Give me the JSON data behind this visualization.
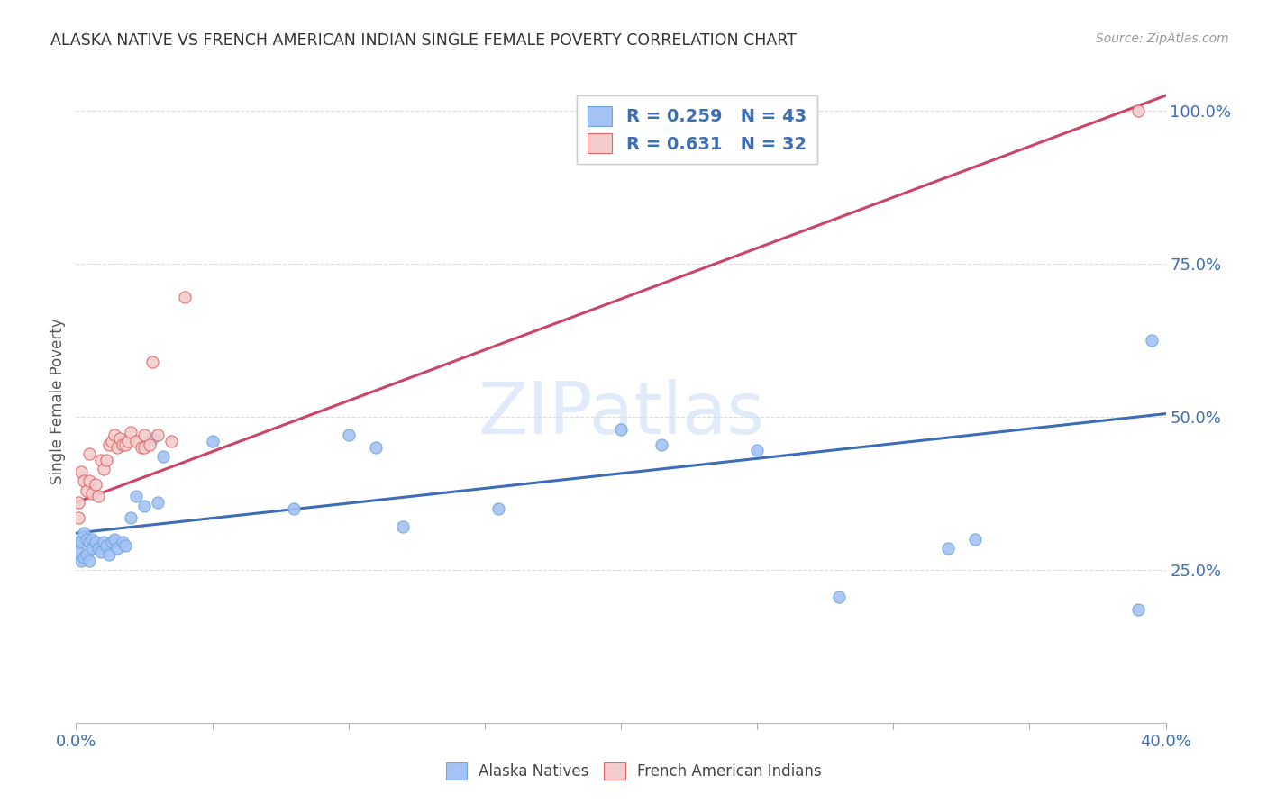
{
  "title": "ALASKA NATIVE VS FRENCH AMERICAN INDIAN SINGLE FEMALE POVERTY CORRELATION CHART",
  "source": "Source: ZipAtlas.com",
  "ylabel": "Single Female Poverty",
  "xlim": [
    0.0,
    0.4
  ],
  "ylim": [
    0.0,
    1.05
  ],
  "xticks": [
    0.0,
    0.05,
    0.1,
    0.15,
    0.2,
    0.25,
    0.3,
    0.35,
    0.4
  ],
  "yticks": [
    0.25,
    0.5,
    0.75,
    1.0
  ],
  "watermark_text": "ZIPatlas",
  "blue_color": "#a4c2f4",
  "blue_edge": "#6fa8dc",
  "pink_color": "#f4cccc",
  "pink_edge": "#e06666",
  "blue_line_color": "#3d6eb5",
  "pink_line_color": "#cc4466",
  "text_blue": "#3d6eb5",
  "background": "#ffffff",
  "alaska_x": [
    0.001,
    0.001,
    0.002,
    0.002,
    0.003,
    0.003,
    0.004,
    0.004,
    0.005,
    0.005,
    0.006,
    0.006,
    0.007,
    0.008,
    0.009,
    0.01,
    0.011,
    0.012,
    0.013,
    0.014,
    0.015,
    0.017,
    0.018,
    0.02,
    0.022,
    0.025,
    0.028,
    0.03,
    0.032,
    0.05,
    0.08,
    0.1,
    0.11,
    0.12,
    0.155,
    0.2,
    0.215,
    0.25,
    0.28,
    0.32,
    0.33,
    0.39,
    0.395
  ],
  "alaska_y": [
    0.295,
    0.28,
    0.295,
    0.265,
    0.31,
    0.27,
    0.3,
    0.275,
    0.295,
    0.265,
    0.3,
    0.285,
    0.295,
    0.285,
    0.28,
    0.295,
    0.29,
    0.275,
    0.295,
    0.3,
    0.285,
    0.295,
    0.29,
    0.335,
    0.37,
    0.355,
    0.465,
    0.36,
    0.435,
    0.46,
    0.35,
    0.47,
    0.45,
    0.32,
    0.35,
    0.48,
    0.455,
    0.445,
    0.205,
    0.285,
    0.3,
    0.185,
    0.625
  ],
  "french_x": [
    0.001,
    0.001,
    0.002,
    0.003,
    0.004,
    0.005,
    0.005,
    0.006,
    0.007,
    0.008,
    0.009,
    0.01,
    0.011,
    0.012,
    0.013,
    0.014,
    0.015,
    0.016,
    0.017,
    0.018,
    0.019,
    0.02,
    0.022,
    0.024,
    0.025,
    0.025,
    0.027,
    0.028,
    0.03,
    0.035,
    0.04,
    0.39
  ],
  "french_y": [
    0.335,
    0.36,
    0.41,
    0.395,
    0.38,
    0.395,
    0.44,
    0.375,
    0.39,
    0.37,
    0.43,
    0.415,
    0.43,
    0.455,
    0.46,
    0.47,
    0.45,
    0.465,
    0.455,
    0.455,
    0.46,
    0.475,
    0.46,
    0.45,
    0.45,
    0.47,
    0.455,
    0.59,
    0.47,
    0.46,
    0.695,
    1.0
  ],
  "blue_trend_x0": 0.0,
  "blue_trend_y0": 0.31,
  "blue_trend_x1": 0.4,
  "blue_trend_y1": 0.505,
  "pink_trend_x0": 0.0,
  "pink_trend_y0": 0.36,
  "pink_trend_x1": 0.4,
  "pink_trend_y1": 1.025
}
